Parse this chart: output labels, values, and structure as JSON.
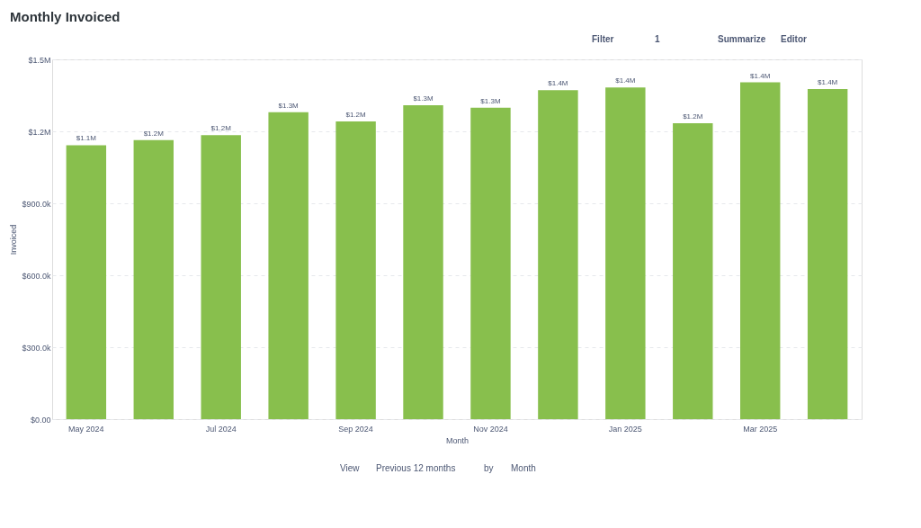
{
  "chart_data": {
    "type": "bar",
    "title": "Monthly Invoiced",
    "xlabel": "Month",
    "ylabel": "Invoiced",
    "color": "#88bf4d",
    "categories": [
      "May 2024",
      null,
      "Jul 2024",
      null,
      "Sep 2024",
      null,
      "Nov 2024",
      null,
      "Jan 2025",
      null,
      "Mar 2025",
      null
    ],
    "values": [
      1142000,
      1163000,
      1184000,
      1280000,
      1241000,
      1309000,
      1298000,
      1372000,
      1383000,
      1234000,
      1404000,
      1376000
    ],
    "value_labels": [
      "$1.1M",
      "$1.2M",
      "$1.2M",
      "$1.3M",
      "$1.2M",
      "$1.3M",
      "$1.3M",
      "$1.4M",
      "$1.4M",
      "$1.2M",
      "$1.4M",
      "$1.4M"
    ],
    "ylim": [
      0,
      1500000
    ],
    "yticks": [
      {
        "value": 0,
        "label": "$0.00"
      },
      {
        "value": 300000,
        "label": "$300.0k"
      },
      {
        "value": 600000,
        "label": "$600.0k"
      },
      {
        "value": 900000,
        "label": "$900.0k"
      },
      {
        "value": 1200000,
        "label": "$1.2M"
      },
      {
        "value": 1500000,
        "label": "$1.5M"
      }
    ],
    "grid": "y",
    "annotations": [
      "Filter",
      "1",
      "Summarize",
      "Editor",
      "View",
      "Previous 12 months",
      "by",
      "Month"
    ]
  }
}
